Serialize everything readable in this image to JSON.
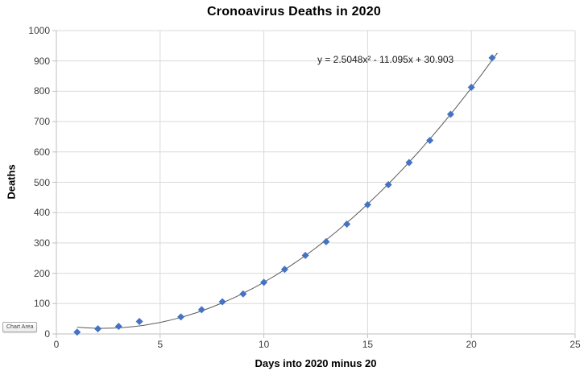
{
  "chart_data": {
    "type": "scatter",
    "title": "Cronoavirus Deaths in 2020",
    "xlabel": "Days into 2020 minus 20",
    "ylabel": "Deaths",
    "xlim": [
      0,
      25
    ],
    "ylim": [
      0,
      1000
    ],
    "x_ticks": [
      0,
      5,
      10,
      15,
      20,
      25
    ],
    "y_ticks": [
      0,
      100,
      200,
      300,
      400,
      500,
      600,
      700,
      800,
      900,
      1000
    ],
    "grid": true,
    "legend": "none",
    "series": [
      {
        "marker": "diamond",
        "color": "#4472C4",
        "x": [
          1,
          2,
          3,
          4,
          6,
          7,
          8,
          9,
          10,
          11,
          12,
          13,
          14,
          15,
          16,
          17,
          18,
          19,
          20,
          21
        ],
        "y": [
          6,
          17,
          25,
          41,
          56,
          80,
          106,
          132,
          170,
          213,
          259,
          304,
          362,
          426,
          492,
          565,
          638,
          724,
          813,
          910
        ]
      }
    ],
    "trendline": {
      "type": "polynomial",
      "degree": 2,
      "a": 2.5048,
      "b": -11.095,
      "c": 30.903,
      "equation_label": "y = 2.5048x² - 11.095x + 30.903",
      "color": "#5a5a5a",
      "x_start": 1,
      "x_end": 21.35
    },
    "colors": {
      "gridline": "#d9d9d9",
      "axis_line": "#bfbfbf",
      "tick_label": "#404040",
      "title": "#000000"
    }
  },
  "tooltip": {
    "label": "Chart Area"
  }
}
